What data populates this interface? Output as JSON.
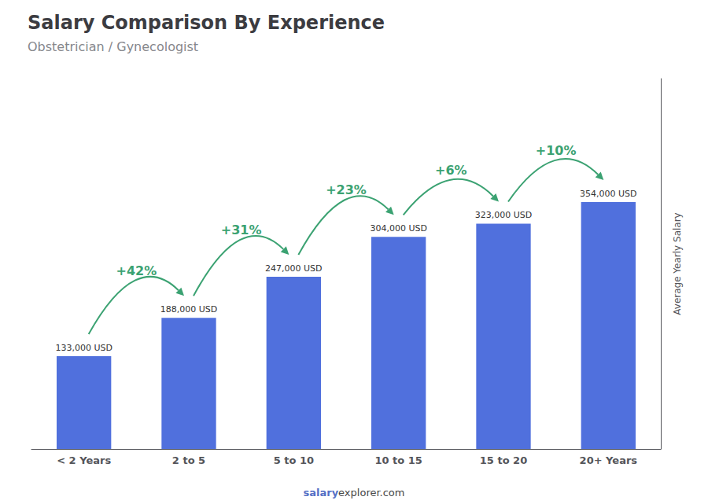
{
  "chart_data": {
    "type": "bar",
    "title": "Salary Comparison By Experience",
    "subtitle": "Obstetrician / Gynecologist",
    "ylabel": "Average Yearly Salary",
    "categories": [
      "< 2 Years",
      "2 to 5",
      "5 to 10",
      "10 to 15",
      "15 to 20",
      "20+ Years"
    ],
    "values": [
      133000,
      188000,
      247000,
      304000,
      323000,
      354000
    ],
    "value_labels": [
      "133,000 USD",
      "188,000 USD",
      "247,000 USD",
      "304,000 USD",
      "323,000 USD",
      "354,000 USD"
    ],
    "data_labels": true,
    "annotations": [
      "+42%",
      "+31%",
      "+23%",
      "+6%",
      "+10%"
    ],
    "footer": [
      "salary",
      "explorer.com"
    ],
    "ylim": [
      0,
      531000
    ],
    "grid": false,
    "tick_labels": "x"
  }
}
